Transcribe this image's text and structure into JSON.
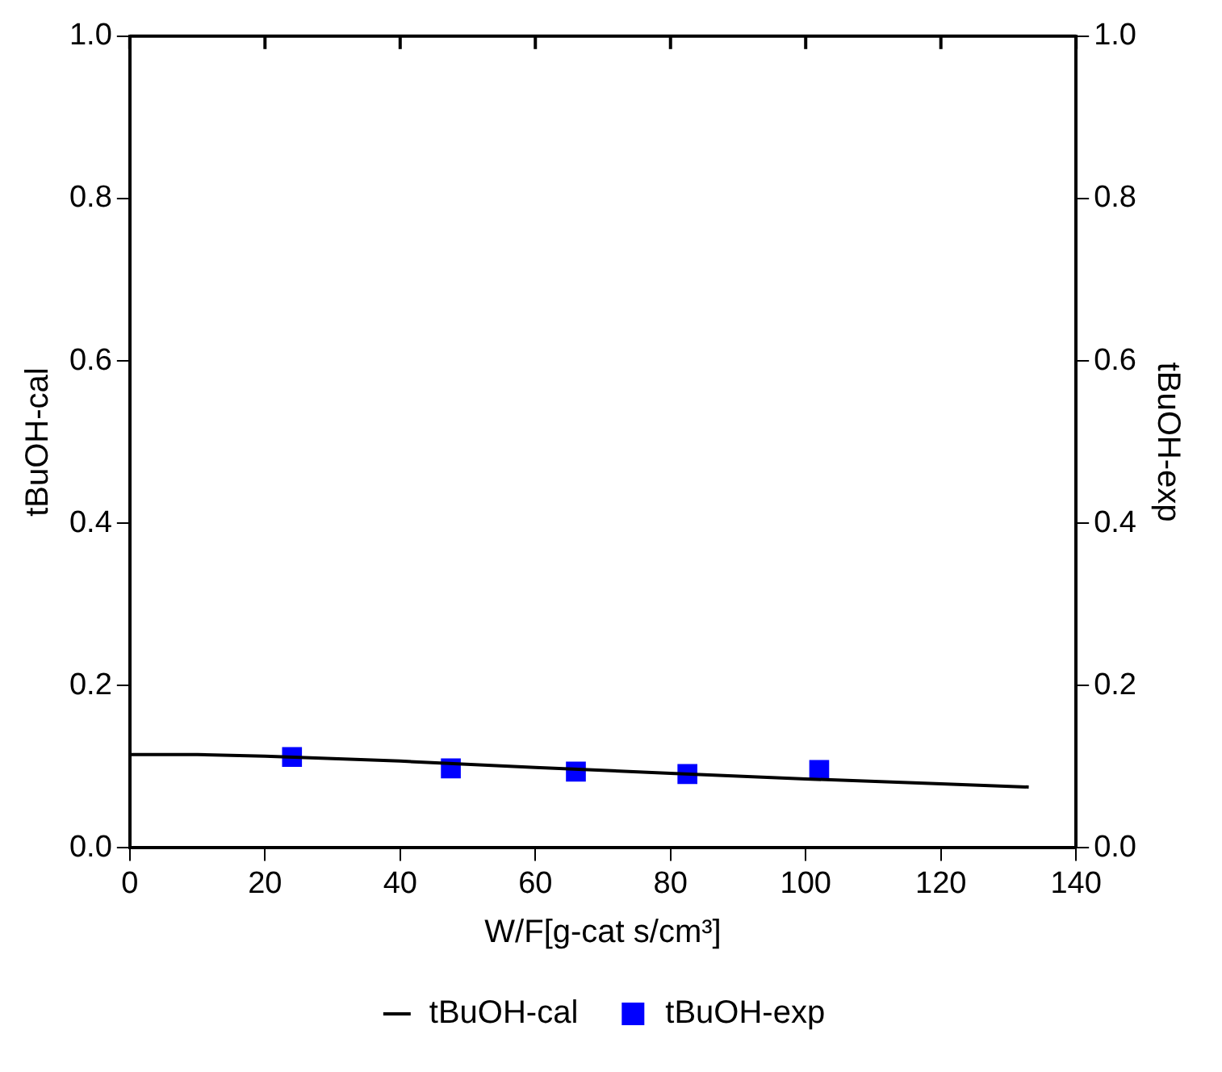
{
  "chart_data": {
    "type": "line",
    "xlabel": "W/F[g-cat s/cm³]",
    "ylabel": "tBuOH-cal",
    "y2label": "tBuOH-exp",
    "xlim": [
      0,
      140
    ],
    "xticks": [
      0,
      20,
      40,
      60,
      80,
      100,
      120,
      140
    ],
    "ylim": [
      0,
      1
    ],
    "yticks": [
      {
        "value": 0,
        "label": "0.0"
      },
      0.2,
      0.4,
      0.6,
      0.8,
      {
        "value": 1,
        "label": "1.0"
      }
    ],
    "y2lim": [
      0,
      1
    ],
    "y2ticks": [
      {
        "value": 0,
        "label": "0.0"
      },
      0.2,
      0.4,
      0.6,
      0.8,
      {
        "value": 1,
        "label": "1.0"
      }
    ],
    "grid": false,
    "legend": "bottom",
    "series": [
      {
        "name": "tBuOH-cal",
        "type": "line",
        "color": "#000000",
        "marker": "none",
        "line_style": "solid",
        "x": [
          0,
          10,
          20,
          40,
          60,
          80,
          100,
          120,
          133
        ],
        "values": [
          0.115,
          0.115,
          0.113,
          0.107,
          0.099,
          0.092,
          0.085,
          0.079,
          0.075
        ]
      },
      {
        "name": "tBuOH-exp",
        "type": "scatter",
        "axis": "y2",
        "color": "#0000ff",
        "marker": "square",
        "x": [
          24,
          47.5,
          66,
          82.5,
          102
        ],
        "values": [
          0.112,
          0.098,
          0.094,
          0.091,
          0.096
        ]
      }
    ]
  }
}
